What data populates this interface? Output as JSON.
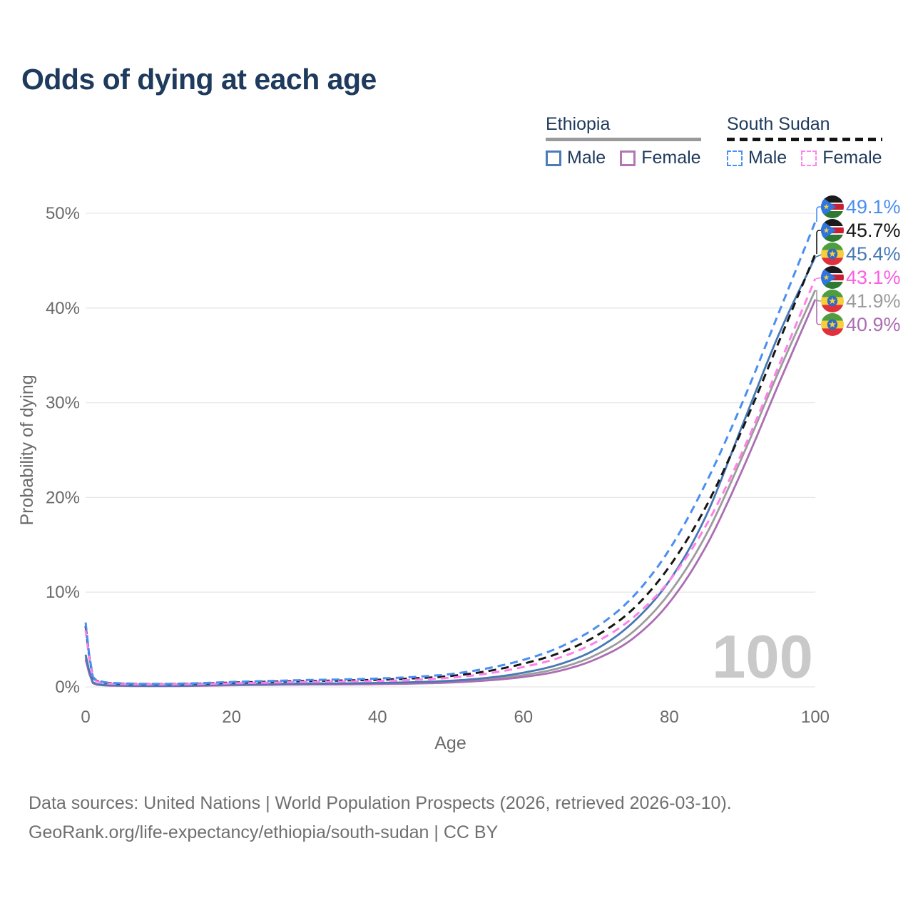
{
  "title": "Odds of dying at each age",
  "legend": {
    "groups": [
      {
        "id": "ethiopia",
        "label": "Ethiopia",
        "line_style": "solid",
        "underline_color": "#9a9a9a",
        "items": [
          {
            "label": "Male",
            "color": "#4a7db8",
            "dash": false
          },
          {
            "label": "Female",
            "color": "#b077b3",
            "dash": false
          }
        ]
      },
      {
        "id": "south-sudan",
        "label": "South Sudan",
        "line_style": "dashed",
        "underline_color": "#141414",
        "items": [
          {
            "label": "Male",
            "color": "#4a90f4",
            "dash": true
          },
          {
            "label": "Female",
            "color": "#ff85e8",
            "dash": true
          }
        ]
      }
    ]
  },
  "watermark": "100",
  "footer": {
    "line1": "Data sources: United Nations | World Population Prospects (2026, retrieved 2026-03-10).",
    "line2": "GeoRank.org/life-expectancy/ethiopia/south-sudan | CC BY"
  },
  "chart_data": {
    "type": "line",
    "title": "Odds of dying at each age",
    "xlabel": "Age",
    "ylabel": "Probability of dying",
    "x_ticks": [
      0,
      20,
      40,
      60,
      80,
      100
    ],
    "y_ticks": [
      "0%",
      "10%",
      "20%",
      "30%",
      "40%",
      "50%"
    ],
    "xlim": [
      0,
      100
    ],
    "ylim_percent": [
      0,
      50
    ],
    "grid": "horizontal",
    "legend_position": "top-right",
    "watermark_age": "100",
    "axis_color": "#6b6b6b",
    "grid_color": "#e7e7e7",
    "watermark_color": "#c9c9c9",
    "ages": [
      0,
      1,
      2,
      5,
      10,
      15,
      20,
      25,
      30,
      35,
      40,
      45,
      50,
      55,
      60,
      65,
      70,
      75,
      80,
      85,
      90,
      95,
      100
    ],
    "series": [
      {
        "id": "ss-male",
        "name": "South Sudan male",
        "country": "South Sudan",
        "flag": "south_sudan",
        "dash": true,
        "color": "#4a8ef2",
        "label_color": "#4a8ef2",
        "end_label": "49.1%",
        "end_value": 49.1,
        "row": 0,
        "z": 6,
        "values": [
          6.8,
          1.05,
          0.6,
          0.38,
          0.32,
          0.38,
          0.52,
          0.62,
          0.72,
          0.78,
          0.88,
          1.05,
          1.35,
          1.95,
          2.85,
          4.2,
          6.3,
          9.5,
          14.5,
          21.5,
          30.0,
          39.5,
          49.1
        ]
      },
      {
        "id": "ss-total",
        "name": "South Sudan both sexes",
        "country": "South Sudan",
        "flag": "south_sudan",
        "dash": true,
        "color": "#161616",
        "label_color": "#161616",
        "end_label": "45.7%",
        "end_value": 45.7,
        "row": 1,
        "z": 4,
        "values": [
          6.4,
          1.0,
          0.55,
          0.34,
          0.29,
          0.33,
          0.45,
          0.54,
          0.62,
          0.67,
          0.75,
          0.9,
          1.15,
          1.65,
          2.45,
          3.6,
          5.4,
          8.2,
          12.7,
          19.0,
          27.2,
          36.4,
          45.7
        ]
      },
      {
        "id": "et-male",
        "name": "Ethiopia male",
        "country": "Ethiopia",
        "flag": "ethiopia",
        "dash": false,
        "color": "#4878b4",
        "label_color": "#4878b4",
        "end_label": "45.4%",
        "end_value": 45.4,
        "row": 2,
        "z": 3,
        "values": [
          3.4,
          0.5,
          0.25,
          0.15,
          0.11,
          0.15,
          0.26,
          0.31,
          0.36,
          0.37,
          0.42,
          0.5,
          0.65,
          0.95,
          1.5,
          2.4,
          4.0,
          6.8,
          11.2,
          18.0,
          27.6,
          37.2,
          45.4
        ]
      },
      {
        "id": "ss-female",
        "name": "South Sudan female",
        "country": "South Sudan",
        "flag": "south_sudan",
        "dash": true,
        "color": "#ff80e8",
        "label_color": "#fb5fe3",
        "end_label": "43.1%",
        "end_value": 43.1,
        "row": 3,
        "z": 5,
        "values": [
          6.0,
          0.95,
          0.5,
          0.3,
          0.26,
          0.29,
          0.38,
          0.45,
          0.52,
          0.56,
          0.62,
          0.75,
          0.97,
          1.4,
          2.1,
          3.1,
          4.75,
          7.3,
          11.2,
          17.0,
          24.8,
          33.9,
          43.1
        ]
      },
      {
        "id": "et-total",
        "name": "Ethiopia both sexes",
        "country": "Ethiopia",
        "flag": "ethiopia",
        "dash": false,
        "color": "#9c9c9c",
        "label_color": "#9c9c9c",
        "end_label": "41.9%",
        "end_value": 41.9,
        "row": 4,
        "z": 1,
        "values": [
          3.15,
          0.45,
          0.22,
          0.13,
          0.1,
          0.13,
          0.21,
          0.26,
          0.3,
          0.31,
          0.35,
          0.42,
          0.55,
          0.8,
          1.25,
          2.0,
          3.4,
          5.8,
          9.9,
          16.0,
          24.3,
          33.3,
          41.9
        ]
      },
      {
        "id": "et-female",
        "name": "Ethiopia female",
        "country": "Ethiopia",
        "flag": "ethiopia",
        "dash": false,
        "color": "#ab6db3",
        "label_color": "#ab6db3",
        "end_label": "40.9%",
        "end_value": 40.9,
        "row": 5,
        "z": 2,
        "values": [
          2.9,
          0.4,
          0.2,
          0.11,
          0.08,
          0.11,
          0.17,
          0.21,
          0.25,
          0.26,
          0.29,
          0.35,
          0.46,
          0.68,
          1.05,
          1.7,
          2.95,
          5.1,
          8.9,
          14.8,
          22.9,
          32.0,
          40.9
        ]
      }
    ]
  }
}
